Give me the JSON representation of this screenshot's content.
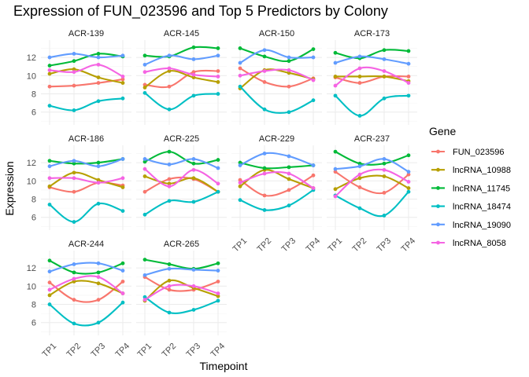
{
  "chart_data": {
    "type": "line",
    "title": "Expression of FUN_023596 and Top 5 Predictors by Colony",
    "xlabel": "Timepoint",
    "ylabel": "Expression",
    "x": [
      "TP1",
      "TP2",
      "TP3",
      "TP4"
    ],
    "y_ticks": [
      6,
      8,
      10,
      12
    ],
    "ylim": [
      4.6,
      13.9
    ],
    "legend": {
      "title": "Gene",
      "placement": "right"
    },
    "genes": [
      {
        "name": "FUN_023596",
        "color": "#F8766D"
      },
      {
        "name": "lncRNA_10988",
        "color": "#B79F00"
      },
      {
        "name": "lncRNA_11745",
        "color": "#00BA38"
      },
      {
        "name": "lncRNA_18474",
        "color": "#00BFC4"
      },
      {
        "name": "lncRNA_19090",
        "color": "#619CFF"
      },
      {
        "name": "lncRNA_8058",
        "color": "#F564E3"
      }
    ],
    "panels": [
      {
        "colony": "ACR-139",
        "values": {
          "FUN_023596": [
            8.8,
            8.9,
            9.2,
            9.6
          ],
          "lncRNA_10988": [
            10.2,
            10.7,
            9.8,
            9.2
          ],
          "lncRNA_11745": [
            11.1,
            11.6,
            12.4,
            12.1
          ],
          "lncRNA_18474": [
            6.7,
            6.2,
            7.2,
            7.5
          ],
          "lncRNA_19090": [
            12.0,
            12.4,
            12.0,
            12.2
          ],
          "lncRNA_8058": [
            10.6,
            10.4,
            11.2,
            9.9
          ]
        }
      },
      {
        "colony": "ACR-145",
        "values": {
          "FUN_023596": [
            9.0,
            8.8,
            10.4,
            10.5
          ],
          "lncRNA_10988": [
            8.7,
            10.5,
            9.8,
            9.3
          ],
          "lncRNA_11745": [
            12.2,
            12.1,
            13.1,
            13.0
          ],
          "lncRNA_18474": [
            8.1,
            6.3,
            7.8,
            8.0
          ],
          "lncRNA_19090": [
            11.2,
            12.2,
            11.8,
            12.2
          ],
          "lncRNA_8058": [
            10.4,
            10.8,
            10.1,
            9.9
          ]
        }
      },
      {
        "colony": "ACR-150",
        "values": {
          "FUN_023596": [
            10.8,
            9.3,
            8.8,
            9.7
          ],
          "lncRNA_10988": [
            8.6,
            10.6,
            10.3,
            9.6
          ],
          "lncRNA_11745": [
            13.0,
            12.1,
            11.6,
            12.9
          ],
          "lncRNA_18474": [
            8.8,
            6.3,
            6.0,
            7.3
          ],
          "lncRNA_19090": [
            11.4,
            12.8,
            12.0,
            12.0
          ],
          "lncRNA_8058": [
            10.0,
            10.5,
            10.6,
            9.5
          ]
        }
      },
      {
        "colony": "ACR-173",
        "values": {
          "FUN_023596": [
            9.8,
            9.2,
            9.9,
            9.9
          ],
          "lncRNA_10988": [
            9.9,
            9.9,
            9.9,
            9.4
          ],
          "lncRNA_11745": [
            12.5,
            11.9,
            12.8,
            12.7
          ],
          "lncRNA_18474": [
            7.8,
            5.6,
            7.5,
            7.8
          ],
          "lncRNA_19090": [
            11.4,
            12.1,
            11.8,
            11.3
          ],
          "lncRNA_8058": [
            8.9,
            10.8,
            10.5,
            9.2
          ]
        }
      },
      {
        "colony": "ACR-186",
        "values": {
          "FUN_023596": [
            9.3,
            8.8,
            9.8,
            9.5
          ],
          "lncRNA_10988": [
            9.4,
            10.9,
            10.1,
            9.3
          ],
          "lncRNA_11745": [
            12.2,
            11.9,
            12.0,
            12.4
          ],
          "lncRNA_18474": [
            7.4,
            5.5,
            7.5,
            6.7
          ],
          "lncRNA_19090": [
            11.6,
            12.2,
            11.6,
            12.4
          ],
          "lncRNA_8058": [
            10.3,
            10.3,
            9.8,
            10.3
          ]
        }
      },
      {
        "colony": "ACR-225",
        "values": {
          "FUN_023596": [
            8.8,
            10.2,
            10.2,
            8.8
          ],
          "lncRNA_10988": [
            10.5,
            9.7,
            10.3,
            8.8
          ],
          "lncRNA_11745": [
            12.1,
            13.2,
            11.9,
            12.3
          ],
          "lncRNA_18474": [
            6.3,
            7.8,
            7.7,
            8.8
          ],
          "lncRNA_19090": [
            12.4,
            11.8,
            12.4,
            11.4
          ],
          "lncRNA_8058": [
            11.3,
            9.4,
            11.2,
            9.7
          ]
        }
      },
      {
        "colony": "ACR-229",
        "values": {
          "FUN_023596": [
            10.1,
            8.4,
            9.0,
            10.6
          ],
          "lncRNA_10988": [
            9.4,
            11.2,
            10.2,
            9.2
          ],
          "lncRNA_11745": [
            12.0,
            11.4,
            11.5,
            11.7
          ],
          "lncRNA_18474": [
            7.9,
            6.8,
            7.3,
            9.0
          ],
          "lncRNA_19090": [
            11.7,
            13.0,
            12.7,
            11.7
          ],
          "lncRNA_8058": [
            9.8,
            10.8,
            10.8,
            9.2
          ]
        }
      },
      {
        "colony": "ACR-237",
        "values": {
          "FUN_023596": [
            11.0,
            9.3,
            8.7,
            10.7
          ],
          "lncRNA_10988": [
            9.1,
            10.3,
            10.5,
            9.2
          ],
          "lncRNA_11745": [
            13.2,
            11.9,
            11.9,
            12.8
          ],
          "lncRNA_18474": [
            8.4,
            7.0,
            6.2,
            8.8
          ],
          "lncRNA_19090": [
            11.3,
            11.6,
            12.4,
            11.0
          ],
          "lncRNA_8058": [
            8.3,
            10.7,
            11.2,
            9.9
          ]
        }
      },
      {
        "colony": "ACR-244",
        "values": {
          "FUN_023596": [
            10.4,
            8.5,
            8.5,
            10.5
          ],
          "lncRNA_10988": [
            9.0,
            10.5,
            10.3,
            9.2
          ],
          "lncRNA_11745": [
            12.8,
            11.5,
            11.5,
            12.5
          ],
          "lncRNA_18474": [
            8.0,
            5.9,
            6.0,
            8.2
          ],
          "lncRNA_19090": [
            11.6,
            12.4,
            12.5,
            11.7
          ],
          "lncRNA_8058": [
            9.6,
            10.8,
            11.0,
            9.2
          ]
        }
      },
      {
        "colony": "ACR-265",
        "values": {
          "FUN_023596": [
            11.0,
            9.6,
            9.6,
            10.5
          ],
          "lncRNA_10988": [
            8.4,
            10.6,
            9.8,
            8.9
          ],
          "lncRNA_11745": [
            12.9,
            12.4,
            11.9,
            12.5
          ],
          "lncRNA_18474": [
            8.8,
            7.1,
            7.4,
            8.4
          ],
          "lncRNA_19090": [
            11.2,
            11.9,
            11.8,
            11.7
          ],
          "lncRNA_8058": [
            8.5,
            10.0,
            10.0,
            9.2
          ]
        }
      }
    ]
  }
}
